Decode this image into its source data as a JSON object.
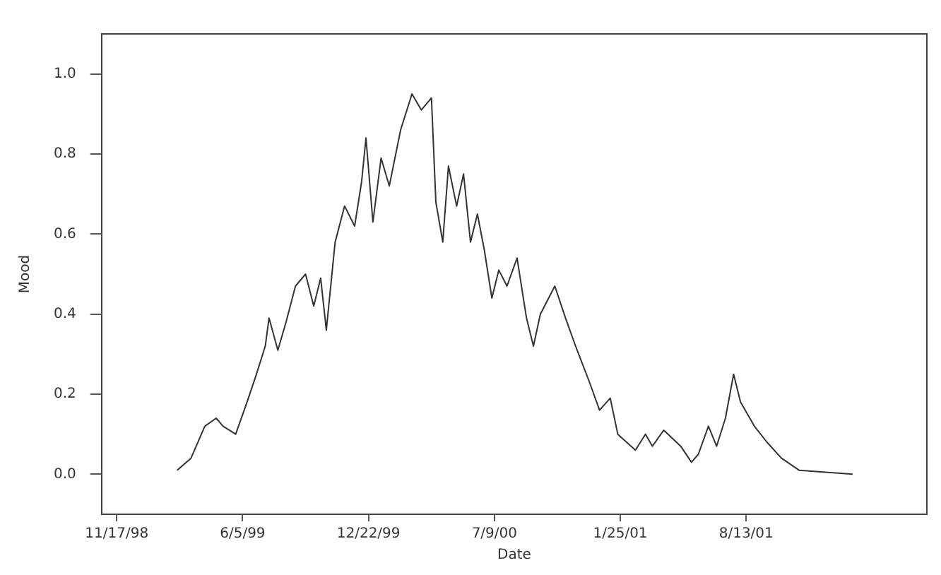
{
  "chart_data": {
    "type": "line",
    "xlabel": "Date",
    "ylabel": "Mood",
    "x": [
      "1999-02-21",
      "1999-03-15",
      "1999-04-06",
      "1999-04-24",
      "1999-05-05",
      "1999-05-25",
      "1999-06-12",
      "1999-06-27",
      "1999-07-11",
      "1999-07-17",
      "1999-07-31",
      "1999-08-13",
      "1999-08-28",
      "1999-09-13",
      "1999-09-26",
      "1999-10-07",
      "1999-10-16",
      "1999-10-30",
      "1999-11-14",
      "1999-11-30",
      "1999-12-11",
      "1999-12-18",
      "1999-12-29",
      "2000-01-11",
      "2000-01-24",
      "2000-02-11",
      "2000-02-29",
      "2000-03-15",
      "2000-03-31",
      "2000-04-07",
      "2000-04-18",
      "2000-04-27",
      "2000-05-10",
      "2000-05-21",
      "2000-06-01",
      "2000-06-12",
      "2000-06-23",
      "2000-07-05",
      "2000-07-16",
      "2000-07-29",
      "2000-08-14",
      "2000-08-29",
      "2000-09-09",
      "2000-09-20",
      "2000-10-13",
      "2000-10-30",
      "2000-11-15",
      "2000-12-07",
      "2000-12-23",
      "2001-01-09",
      "2001-01-21",
      "2001-02-18",
      "2001-03-06",
      "2001-03-17",
      "2001-04-04",
      "2001-05-01",
      "2001-05-18",
      "2001-05-29",
      "2001-06-14",
      "2001-06-27",
      "2001-07-11",
      "2001-07-24",
      "2001-08-04",
      "2001-08-26",
      "2001-09-15",
      "2001-10-08",
      "2001-11-05",
      "2002-01-29"
    ],
    "series": [
      {
        "color": "#333333",
        "values": [
          0.01,
          0.04,
          0.12,
          0.14,
          0.12,
          0.1,
          0.18,
          0.25,
          0.32,
          0.39,
          0.31,
          0.38,
          0.47,
          0.5,
          0.42,
          0.49,
          0.36,
          0.58,
          0.67,
          0.62,
          0.73,
          0.84,
          0.63,
          0.79,
          0.72,
          0.86,
          0.95,
          0.91,
          0.94,
          0.68,
          0.58,
          0.77,
          0.67,
          0.75,
          0.58,
          0.65,
          0.56,
          0.44,
          0.51,
          0.47,
          0.54,
          0.39,
          0.32,
          0.4,
          0.47,
          0.39,
          0.32,
          0.23,
          0.16,
          0.19,
          0.1,
          0.06,
          0.1,
          0.07,
          0.11,
          0.07,
          0.03,
          0.05,
          0.12,
          0.07,
          0.14,
          0.25,
          0.18,
          0.12,
          0.08,
          0.04,
          0.01,
          0.0
        ]
      }
    ],
    "xlim": [
      "1998-10-24",
      "2002-05-27"
    ],
    "xticks": [
      {
        "value": "1998-11-17",
        "label": "11/17/98"
      },
      {
        "value": "1999-06-05",
        "label": "6/5/99"
      },
      {
        "value": "1999-12-22",
        "label": "12/22/99"
      },
      {
        "value": "2000-07-09",
        "label": "7/9/00"
      },
      {
        "value": "2001-01-25",
        "label": "1/25/01"
      },
      {
        "value": "2001-08-13",
        "label": "8/13/01"
      }
    ],
    "ylim": [
      -0.1,
      1.1
    ],
    "yticks": [
      {
        "value": 0,
        "label": "0.0"
      },
      {
        "value": 0.2,
        "label": "0.2"
      },
      {
        "value": 0.4,
        "label": "0.4"
      },
      {
        "value": 0.6,
        "label": "0.6"
      },
      {
        "value": 0.8,
        "label": "0.8"
      },
      {
        "value": 1,
        "label": "1.0"
      }
    ],
    "grid": false,
    "legend": false,
    "marker": "none",
    "line_style": "solid"
  }
}
